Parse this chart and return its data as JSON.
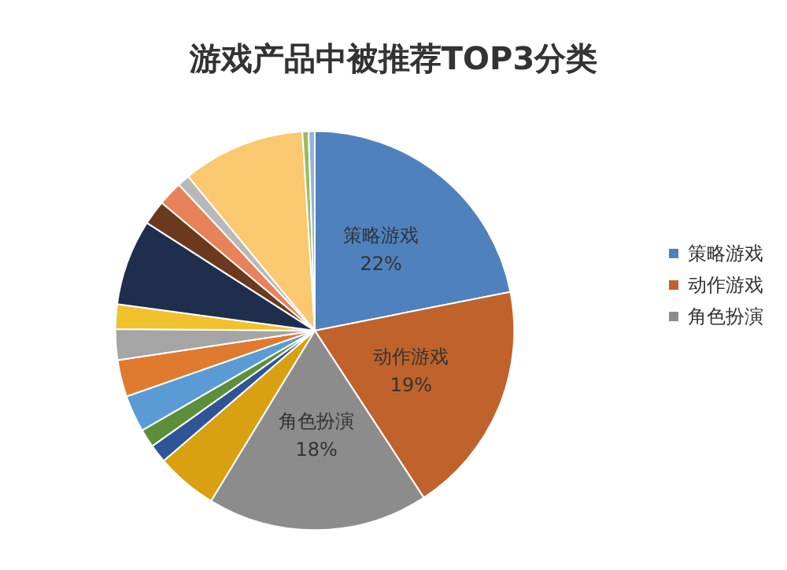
{
  "chart_data": {
    "type": "pie",
    "title": "游戏产品中被推荐TOP3分类",
    "categories": [
      "策略游戏",
      "动作游戏",
      "角色扮演",
      null,
      null,
      null,
      null,
      null,
      null,
      null,
      null,
      null,
      null,
      null,
      null,
      null,
      null
    ],
    "values": [
      22,
      19,
      18,
      5,
      1.5,
      1.5,
      3,
      3,
      2.5,
      2,
      7,
      2,
      2,
      1,
      10,
      0.5,
      0.5
    ],
    "colors": [
      "#4f81bd",
      "#c0622b",
      "#8c8c8c",
      "#d9a011",
      "#2f5597",
      "#5b8f3a",
      "#5b9bd5",
      "#e07a2e",
      "#a5a5a5",
      "#f2c12e",
      "#1f2e4d",
      "#6b3a1e",
      "#e8825a",
      "#b8b8b8",
      "#fac86e",
      "#9bbb59",
      "#8eb4e3"
    ],
    "value_labels": [
      "22%",
      "19%",
      "18%",
      null,
      null,
      null,
      null,
      null,
      null,
      null,
      null,
      null,
      null,
      null,
      null,
      null,
      null
    ],
    "legend": "right"
  }
}
